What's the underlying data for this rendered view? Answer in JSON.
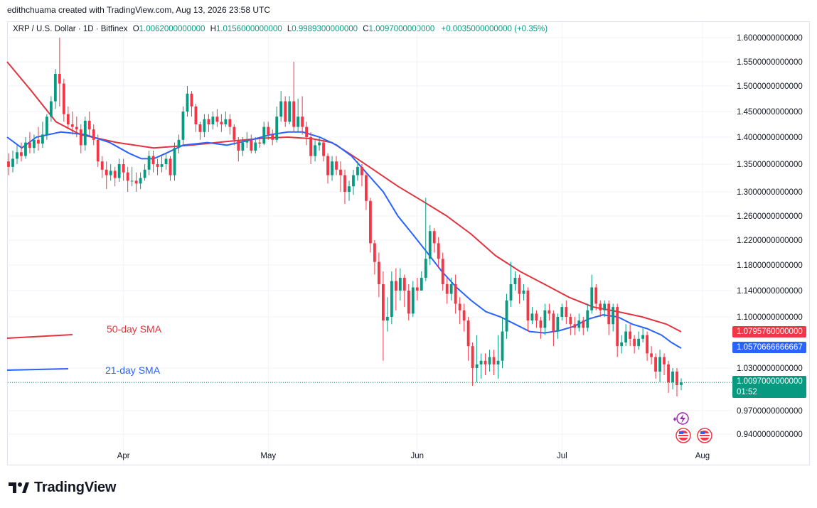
{
  "header": {
    "credit": "edithchuama created with TradingView.com, Aug 13, 2026 23:58 UTC"
  },
  "legend": {
    "symbol": "XRP / U.S. Dollar · 1D · Bitfinex",
    "open_label": "O",
    "open": "1.0062000000000",
    "high_label": "H",
    "high": "1.0156000000000",
    "low_label": "L",
    "low": "0.9989300000000",
    "close_label": "C",
    "close": "1.0097000000000",
    "change": "+0.0035000000000 (+0.35%)"
  },
  "indicators": {
    "sma50": {
      "label": "50-day SMA",
      "color": "#e0343f",
      "value_tag": "1.0795760000000"
    },
    "sma21": {
      "label": "21-day SMA",
      "color": "#2962ff",
      "value_tag": "1.0570666666667"
    }
  },
  "last_price": {
    "value": "1.0097000000000",
    "countdown": "01:52",
    "color": "#089981"
  },
  "branding": {
    "logo_text": "TradingView"
  },
  "colors": {
    "up": "#089981",
    "down": "#f23645",
    "grid": "#f0f3fa"
  },
  "chart_data": {
    "type": "candlestick",
    "title": "XRP / U.S. Dollar · 1D · Bitfinex",
    "x_ticks": [
      "Apr",
      "May",
      "Jun",
      "Jul",
      "Aug"
    ],
    "y_ticks": [
      "1.6000000000000",
      "1.5500000000000",
      "1.5000000000000",
      "1.4500000000000",
      "1.4000000000000",
      "1.3500000000000",
      "1.3000000000000",
      "1.2600000000000",
      "1.2200000000000",
      "1.1800000000000",
      "1.1400000000000",
      "1.1000000000000",
      "1.0300000000000",
      "0.9700000000000",
      "0.9400000000000"
    ],
    "y_tick_values": [
      1.6,
      1.55,
      1.5,
      1.45,
      1.4,
      1.35,
      1.3,
      1.26,
      1.22,
      1.18,
      1.14,
      1.1,
      1.03,
      0.97,
      0.94
    ],
    "series": [
      {
        "name": "50-day SMA",
        "color": "#e0343f",
        "values": [
          [
            0,
            1.55
          ],
          [
            10,
            1.49
          ],
          [
            20,
            1.43
          ],
          [
            30,
            1.405
          ],
          [
            45,
            1.39
          ],
          [
            60,
            1.38
          ],
          [
            75,
            1.385
          ],
          [
            90,
            1.392
          ],
          [
            105,
            1.398
          ],
          [
            115,
            1.4
          ],
          [
            125,
            1.397
          ],
          [
            133,
            1.39
          ],
          [
            140,
            1.37
          ],
          [
            150,
            1.34
          ],
          [
            160,
            1.31
          ],
          [
            170,
            1.285
          ],
          [
            180,
            1.26
          ],
          [
            190,
            1.23
          ],
          [
            200,
            1.195
          ],
          [
            210,
            1.17
          ],
          [
            220,
            1.15
          ],
          [
            230,
            1.13
          ],
          [
            240,
            1.115
          ],
          [
            250,
            1.108
          ],
          [
            260,
            1.1
          ],
          [
            270,
            1.09
          ],
          [
            276,
            1.0796
          ]
        ]
      },
      {
        "name": "21-day SMA",
        "color": "#2962ff",
        "values": [
          [
            0,
            1.4
          ],
          [
            6,
            1.38
          ],
          [
            12,
            1.4
          ],
          [
            22,
            1.41
          ],
          [
            32,
            1.405
          ],
          [
            42,
            1.39
          ],
          [
            50,
            1.37
          ],
          [
            55,
            1.36
          ],
          [
            60,
            1.36
          ],
          [
            65,
            1.37
          ],
          [
            72,
            1.385
          ],
          [
            82,
            1.39
          ],
          [
            90,
            1.385
          ],
          [
            100,
            1.395
          ],
          [
            108,
            1.405
          ],
          [
            115,
            1.41
          ],
          [
            121,
            1.41
          ],
          [
            128,
            1.4
          ],
          [
            135,
            1.385
          ],
          [
            141,
            1.365
          ],
          [
            148,
            1.33
          ],
          [
            154,
            1.3
          ],
          [
            160,
            1.26
          ],
          [
            166,
            1.23
          ],
          [
            172,
            1.2
          ],
          [
            178,
            1.17
          ],
          [
            184,
            1.145
          ],
          [
            190,
            1.125
          ],
          [
            196,
            1.108
          ],
          [
            202,
            1.1
          ],
          [
            208,
            1.09
          ],
          [
            214,
            1.08
          ],
          [
            220,
            1.078
          ],
          [
            226,
            1.081
          ],
          [
            232,
            1.087
          ],
          [
            238,
            1.097
          ],
          [
            244,
            1.103
          ],
          [
            250,
            1.1
          ],
          [
            256,
            1.09
          ],
          [
            262,
            1.084
          ],
          [
            268,
            1.075
          ],
          [
            272,
            1.065
          ],
          [
            276,
            1.0571
          ]
        ]
      }
    ],
    "candles": [
      [
        0,
        1.355,
        1.345,
        1.37,
        1.33
      ],
      [
        1,
        1.345,
        1.36,
        1.375,
        1.335
      ],
      [
        2,
        1.36,
        1.372,
        1.385,
        1.35
      ],
      [
        3,
        1.372,
        1.365,
        1.39,
        1.355
      ],
      [
        4,
        1.365,
        1.39,
        1.4,
        1.36
      ],
      [
        5,
        1.39,
        1.38,
        1.41,
        1.37
      ],
      [
        6,
        1.38,
        1.395,
        1.405,
        1.37
      ],
      [
        7,
        1.395,
        1.388,
        1.42,
        1.375
      ],
      [
        8,
        1.388,
        1.405,
        1.43,
        1.38
      ],
      [
        9,
        1.405,
        1.44,
        1.445,
        1.395
      ],
      [
        10,
        1.44,
        1.47,
        1.48,
        1.43
      ],
      [
        11,
        1.47,
        1.525,
        1.535,
        1.455
      ],
      [
        12,
        1.525,
        1.505,
        1.6,
        1.46
      ],
      [
        13,
        1.505,
        1.445,
        1.515,
        1.43
      ],
      [
        14,
        1.445,
        1.425,
        1.46,
        1.415
      ],
      [
        15,
        1.425,
        1.42,
        1.45,
        1.405
      ],
      [
        16,
        1.42,
        1.415,
        1.44,
        1.4
      ],
      [
        17,
        1.415,
        1.385,
        1.425,
        1.37
      ],
      [
        18,
        1.385,
        1.432,
        1.44,
        1.375
      ],
      [
        19,
        1.432,
        1.415,
        1.45,
        1.4
      ],
      [
        20,
        1.415,
        1.395,
        1.425,
        1.385
      ],
      [
        21,
        1.395,
        1.355,
        1.405,
        1.345
      ],
      [
        22,
        1.355,
        1.34,
        1.365,
        1.325
      ],
      [
        23,
        1.34,
        1.33,
        1.355,
        1.305
      ],
      [
        24,
        1.33,
        1.338,
        1.35,
        1.32
      ],
      [
        25,
        1.338,
        1.325,
        1.345,
        1.31
      ],
      [
        26,
        1.325,
        1.35,
        1.36,
        1.318
      ],
      [
        27,
        1.35,
        1.335,
        1.36,
        1.32
      ],
      [
        28,
        1.335,
        1.32,
        1.345,
        1.3
      ],
      [
        29,
        1.32,
        1.32,
        1.345,
        1.31
      ],
      [
        30,
        1.32,
        1.315,
        1.335,
        1.3
      ],
      [
        31,
        1.315,
        1.325,
        1.335,
        1.305
      ],
      [
        32,
        1.325,
        1.34,
        1.35,
        1.32
      ],
      [
        33,
        1.34,
        1.365,
        1.375,
        1.33
      ],
      [
        34,
        1.365,
        1.35,
        1.375,
        1.335
      ],
      [
        35,
        1.35,
        1.345,
        1.36,
        1.33
      ],
      [
        36,
        1.345,
        1.35,
        1.365,
        1.335
      ],
      [
        37,
        1.35,
        1.36,
        1.37,
        1.34
      ],
      [
        38,
        1.36,
        1.33,
        1.365,
        1.32
      ],
      [
        39,
        1.33,
        1.38,
        1.39,
        1.32
      ],
      [
        40,
        1.38,
        1.395,
        1.405,
        1.37
      ],
      [
        41,
        1.395,
        1.45,
        1.46,
        1.385
      ],
      [
        42,
        1.45,
        1.485,
        1.5,
        1.44
      ],
      [
        43,
        1.485,
        1.46,
        1.49,
        1.44
      ],
      [
        44,
        1.46,
        1.425,
        1.465,
        1.41
      ],
      [
        45,
        1.425,
        1.41,
        1.43,
        1.395
      ],
      [
        46,
        1.41,
        1.435,
        1.445,
        1.4
      ],
      [
        47,
        1.435,
        1.425,
        1.445,
        1.41
      ],
      [
        48,
        1.425,
        1.44,
        1.45,
        1.415
      ],
      [
        49,
        1.44,
        1.43,
        1.455,
        1.42
      ],
      [
        50,
        1.43,
        1.425,
        1.445,
        1.41
      ],
      [
        51,
        1.425,
        1.435,
        1.45,
        1.42
      ],
      [
        52,
        1.435,
        1.42,
        1.445,
        1.405
      ],
      [
        53,
        1.42,
        1.395,
        1.425,
        1.385
      ],
      [
        54,
        1.395,
        1.375,
        1.4,
        1.355
      ],
      [
        55,
        1.375,
        1.39,
        1.4,
        1.365
      ],
      [
        56,
        1.39,
        1.395,
        1.41,
        1.38
      ],
      [
        57,
        1.395,
        1.375,
        1.405,
        1.37
      ],
      [
        58,
        1.375,
        1.39,
        1.4,
        1.37
      ],
      [
        59,
        1.39,
        1.388,
        1.4,
        1.38
      ],
      [
        60,
        1.388,
        1.42,
        1.43,
        1.385
      ],
      [
        61,
        1.42,
        1.405,
        1.43,
        1.395
      ],
      [
        62,
        1.405,
        1.395,
        1.415,
        1.385
      ],
      [
        63,
        1.395,
        1.44,
        1.46,
        1.39
      ],
      [
        64,
        1.44,
        1.47,
        1.49,
        1.43
      ],
      [
        65,
        1.47,
        1.43,
        1.48,
        1.42
      ],
      [
        66,
        1.43,
        1.47,
        1.48,
        1.425
      ],
      [
        67,
        1.47,
        1.42,
        1.55,
        1.41
      ],
      [
        68,
        1.42,
        1.44,
        1.475,
        1.41
      ],
      [
        69,
        1.44,
        1.42,
        1.48,
        1.405
      ],
      [
        70,
        1.42,
        1.4,
        1.43,
        1.385
      ],
      [
        71,
        1.4,
        1.365,
        1.41,
        1.35
      ],
      [
        72,
        1.365,
        1.385,
        1.395,
        1.355
      ],
      [
        73,
        1.385,
        1.39,
        1.4,
        1.375
      ],
      [
        74,
        1.39,
        1.365,
        1.395,
        1.355
      ],
      [
        75,
        1.365,
        1.33,
        1.37,
        1.315
      ],
      [
        76,
        1.33,
        1.355,
        1.365,
        1.32
      ],
      [
        77,
        1.355,
        1.34,
        1.365,
        1.33
      ],
      [
        78,
        1.34,
        1.33,
        1.355,
        1.3
      ],
      [
        79,
        1.33,
        1.3,
        1.34,
        1.28
      ],
      [
        80,
        1.3,
        1.31,
        1.32,
        1.285
      ],
      [
        81,
        1.31,
        1.33,
        1.34,
        1.295
      ],
      [
        82,
        1.33,
        1.345,
        1.355,
        1.32
      ],
      [
        83,
        1.345,
        1.33,
        1.35,
        1.31
      ],
      [
        84,
        1.33,
        1.285,
        1.335,
        1.27
      ],
      [
        85,
        1.285,
        1.215,
        1.29,
        1.2
      ],
      [
        86,
        1.215,
        1.185,
        1.22,
        1.165
      ],
      [
        87,
        1.185,
        1.15,
        1.2,
        1.13
      ],
      [
        88,
        1.15,
        1.095,
        1.17,
        1.04
      ],
      [
        89,
        1.095,
        1.1,
        1.13,
        1.08
      ],
      [
        90,
        1.1,
        1.155,
        1.17,
        1.09
      ],
      [
        91,
        1.155,
        1.14,
        1.175,
        1.11
      ],
      [
        92,
        1.14,
        1.16,
        1.175,
        1.125
      ],
      [
        93,
        1.16,
        1.14,
        1.165,
        1.115
      ],
      [
        94,
        1.14,
        1.105,
        1.15,
        1.095
      ],
      [
        95,
        1.105,
        1.145,
        1.155,
        1.1
      ],
      [
        96,
        1.145,
        1.14,
        1.16,
        1.125
      ],
      [
        97,
        1.14,
        1.16,
        1.17,
        1.14
      ],
      [
        98,
        1.16,
        1.19,
        1.29,
        1.155
      ],
      [
        99,
        1.19,
        1.235,
        1.245,
        1.18
      ],
      [
        100,
        1.235,
        1.215,
        1.24,
        1.2
      ],
      [
        101,
        1.215,
        1.19,
        1.225,
        1.175
      ],
      [
        102,
        1.19,
        1.15,
        1.2,
        1.14
      ],
      [
        103,
        1.15,
        1.135,
        1.16,
        1.12
      ],
      [
        104,
        1.135,
        1.15,
        1.16,
        1.125
      ],
      [
        105,
        1.15,
        1.12,
        1.165,
        1.105
      ],
      [
        106,
        1.12,
        1.11,
        1.13,
        1.09
      ],
      [
        107,
        1.11,
        1.095,
        1.12,
        1.08
      ],
      [
        108,
        1.095,
        1.06,
        1.1,
        1.04
      ],
      [
        109,
        1.06,
        1.03,
        1.065,
        1.005
      ],
      [
        110,
        1.03,
        1.035,
        1.075,
        1.01
      ],
      [
        111,
        1.035,
        1.04,
        1.05,
        1.015
      ],
      [
        112,
        1.04,
        1.035,
        1.05,
        1.02
      ],
      [
        113,
        1.035,
        1.045,
        1.055,
        1.025
      ],
      [
        114,
        1.045,
        1.035,
        1.055,
        1.02
      ],
      [
        115,
        1.035,
        1.04,
        1.075,
        1.015
      ],
      [
        116,
        1.04,
        1.08,
        1.1,
        1.03
      ],
      [
        117,
        1.08,
        1.125,
        1.135,
        1.07
      ],
      [
        118,
        1.125,
        1.15,
        1.185,
        1.115
      ],
      [
        119,
        1.15,
        1.16,
        1.17,
        1.14
      ],
      [
        120,
        1.16,
        1.135,
        1.165,
        1.12
      ],
      [
        121,
        1.135,
        1.14,
        1.15,
        1.125
      ],
      [
        122,
        1.14,
        1.095,
        1.145,
        1.08
      ],
      [
        123,
        1.095,
        1.105,
        1.115,
        1.09
      ],
      [
        124,
        1.105,
        1.095,
        1.11,
        1.085
      ],
      [
        125,
        1.095,
        1.085,
        1.1,
        1.07
      ],
      [
        126,
        1.085,
        1.11,
        1.12,
        1.075
      ],
      [
        127,
        1.11,
        1.105,
        1.12,
        1.095
      ],
      [
        128,
        1.105,
        1.08,
        1.11,
        1.06
      ],
      [
        129,
        1.08,
        1.1,
        1.105,
        1.07
      ],
      [
        130,
        1.1,
        1.115,
        1.12,
        1.095
      ],
      [
        131,
        1.115,
        1.1,
        1.125,
        1.09
      ],
      [
        132,
        1.1,
        1.09,
        1.105,
        1.075
      ],
      [
        133,
        1.09,
        1.085,
        1.1,
        1.075
      ],
      [
        134,
        1.085,
        1.095,
        1.105,
        1.08
      ],
      [
        135,
        1.095,
        1.085,
        1.1,
        1.075
      ],
      [
        136,
        1.085,
        1.11,
        1.12,
        1.08
      ],
      [
        137,
        1.11,
        1.145,
        1.165,
        1.105
      ],
      [
        138,
        1.145,
        1.12,
        1.15,
        1.11
      ],
      [
        139,
        1.12,
        1.11,
        1.125,
        1.1
      ],
      [
        140,
        1.11,
        1.12,
        1.125,
        1.1
      ],
      [
        141,
        1.12,
        1.09,
        1.125,
        1.075
      ],
      [
        142,
        1.09,
        1.115,
        1.12,
        1.08
      ],
      [
        143,
        1.115,
        1.06,
        1.12,
        1.045
      ],
      [
        144,
        1.06,
        1.065,
        1.075,
        1.05
      ],
      [
        145,
        1.065,
        1.08,
        1.09,
        1.06
      ],
      [
        146,
        1.08,
        1.07,
        1.09,
        1.06
      ],
      [
        147,
        1.07,
        1.06,
        1.075,
        1.05
      ],
      [
        148,
        1.06,
        1.07,
        1.08,
        1.055
      ],
      [
        149,
        1.07,
        1.075,
        1.085,
        1.065
      ],
      [
        150,
        1.075,
        1.05,
        1.08,
        1.04
      ],
      [
        151,
        1.05,
        1.045,
        1.06,
        1.035
      ],
      [
        152,
        1.045,
        1.025,
        1.05,
        1.015
      ],
      [
        153,
        1.025,
        1.045,
        1.055,
        1.01
      ],
      [
        154,
        1.045,
        1.035,
        1.05,
        1.02
      ],
      [
        155,
        1.035,
        1.01,
        1.04,
        0.995
      ],
      [
        156,
        1.01,
        1.025,
        1.03,
        1.0
      ],
      [
        157,
        1.025,
        1.006,
        1.03,
        0.99
      ],
      [
        158,
        1.0062,
        1.0097,
        1.0156,
        0.99893
      ]
    ]
  }
}
